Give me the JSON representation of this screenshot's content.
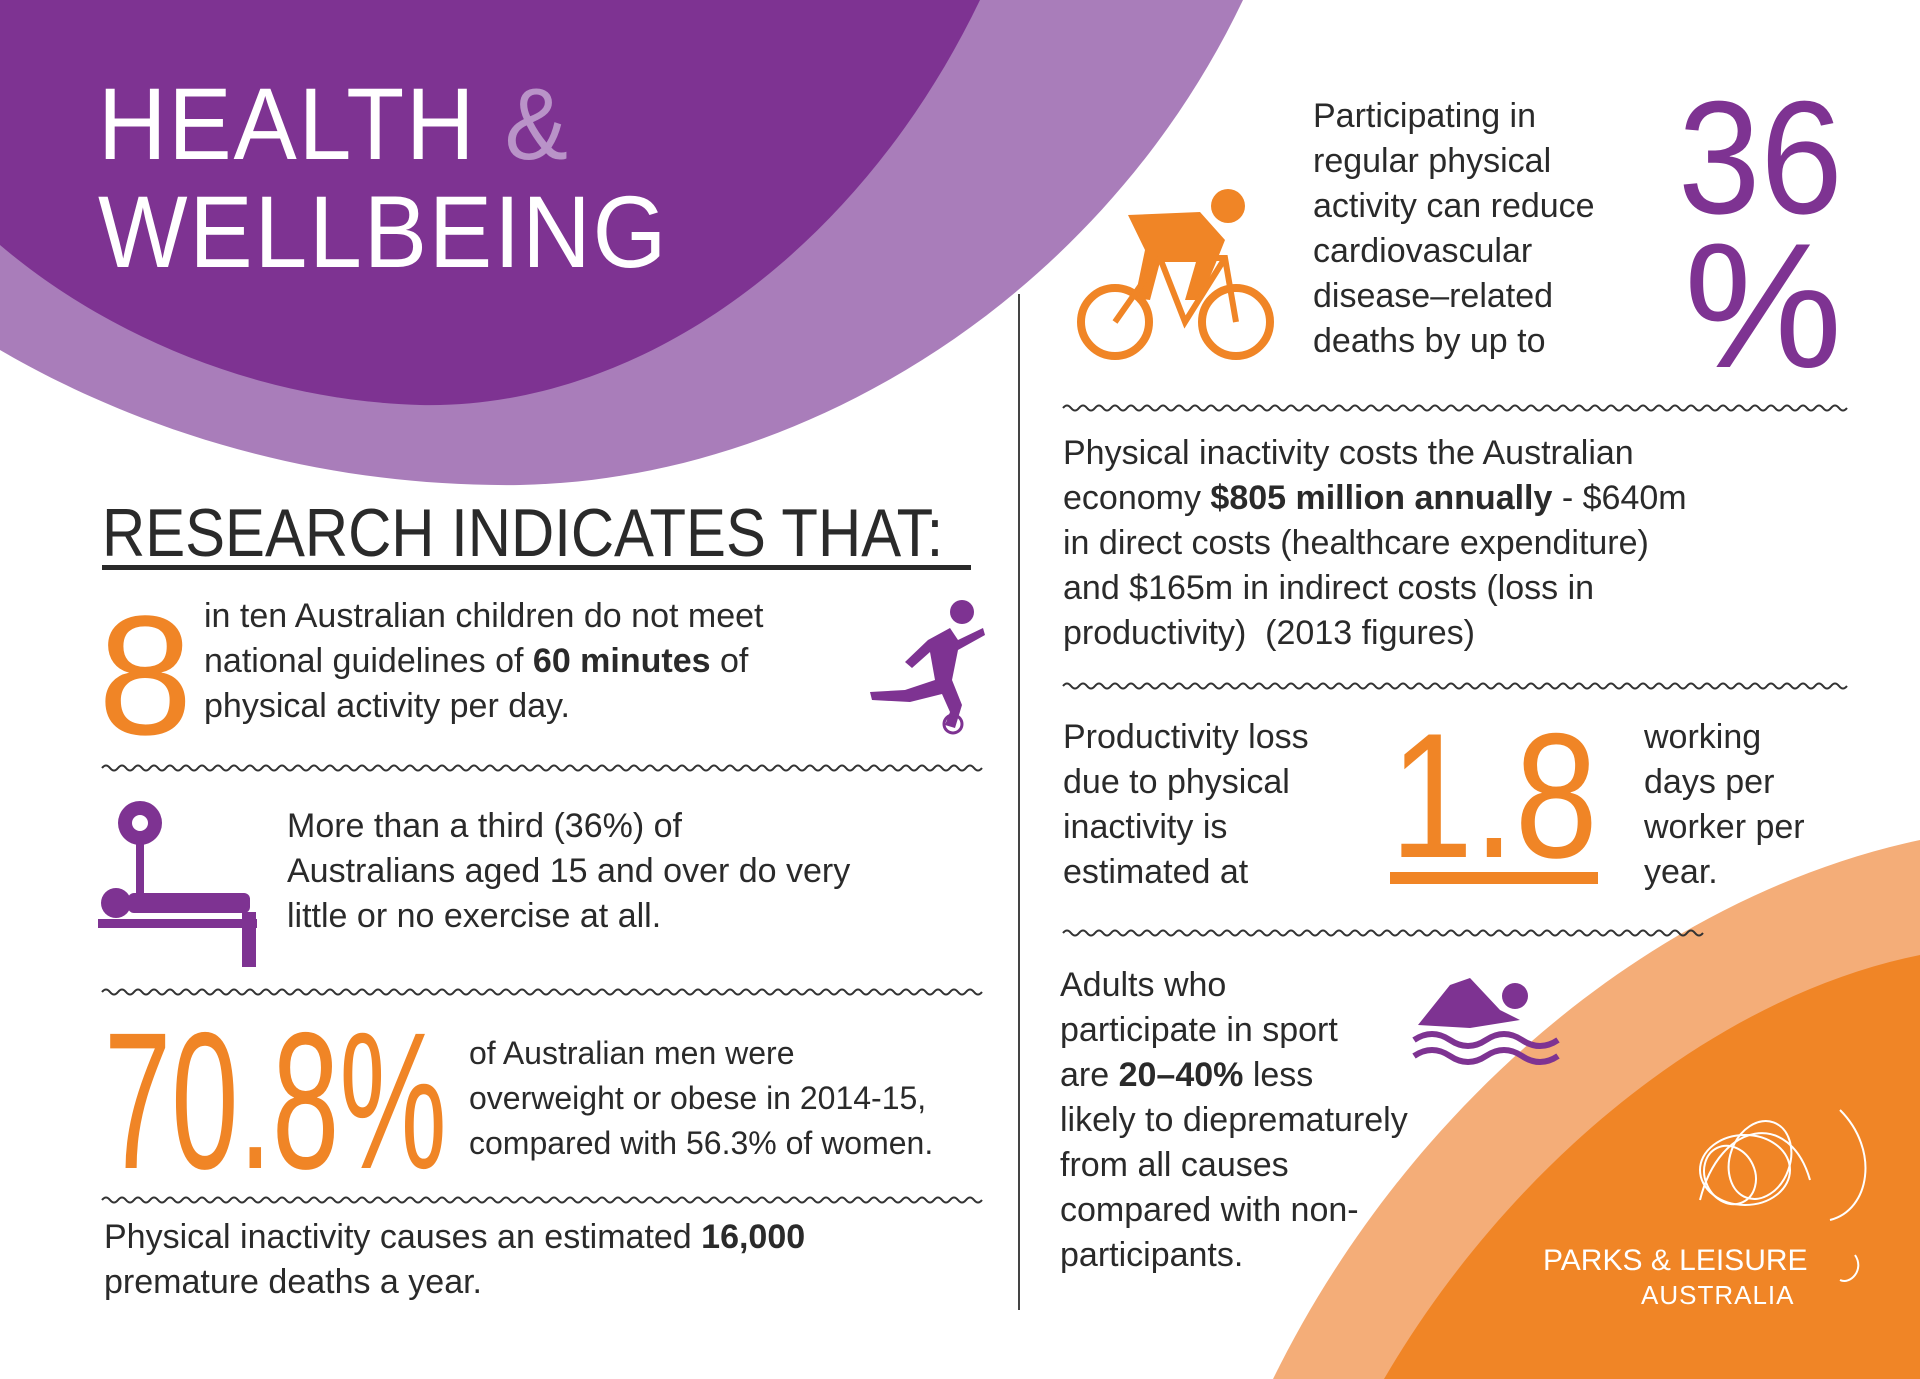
{
  "header": {
    "title_line1": "HEALTH",
    "ampersand": "&",
    "title_line2": "WELLBEING"
  },
  "research": {
    "heading": "RESEARCH INDICATES THAT:",
    "items": [
      {
        "number": "8",
        "lines": [
          "in ten Australian children do not meet",
          [
            "national guidelines of ",
            "60 minutes",
            " of"
          ],
          "physical activity per day."
        ]
      },
      {
        "lines": [
          "More than a third (36%) of",
          "Australians aged 15 and over do very",
          "little or no exercise at all."
        ]
      },
      {
        "number": "70.8%",
        "lines": [
          "of Australian men were",
          "overweight or obese in 2014-15,",
          "compared with 56.3% of women."
        ]
      },
      {
        "lines": [
          [
            "Physical inactivity causes an estimated ",
            "16,000"
          ],
          "premature deaths a year."
        ]
      }
    ]
  },
  "facts": [
    {
      "lines": [
        "Participating in",
        "regular physical",
        "activity can reduce",
        "cardiovascular",
        "disease–related",
        "deaths by up to"
      ],
      "number": "36",
      "unit": "%"
    },
    {
      "lines": [
        "Physical inactivity costs the Australian",
        [
          "economy ",
          "$805 million annually",
          " - $640m"
        ],
        "in direct costs (healthcare expenditure)",
        "and $165m in indirect costs (loss in",
        "productivity)  (2013 figures)"
      ]
    },
    {
      "lines_left": [
        "Productivity loss",
        "due to physical",
        "inactivity is",
        "estimated at"
      ],
      "number": "1.8",
      "lines_right": [
        "working",
        "days per",
        "worker per",
        "year."
      ]
    },
    {
      "lines": [
        "Adults who",
        "participate in sport",
        [
          "are ",
          "20–40%",
          " less"
        ],
        "likely to dieprematurely",
        "from all causes",
        "compared with non-",
        "participants."
      ]
    }
  ],
  "logo": {
    "name": "PARKS & LEISURE",
    "country": "AUSTRALIA"
  }
}
